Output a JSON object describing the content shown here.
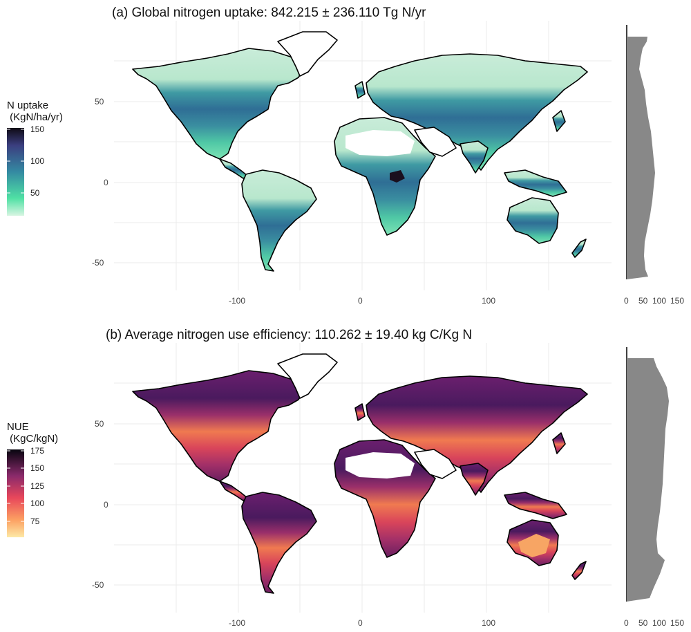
{
  "panels": [
    {
      "id": "a",
      "title": "(a) Global nitrogen uptake: 842.215 ± 236.110 Tg N/yr",
      "legend_title": "N uptake\n (KgN/ha/yr)",
      "legend_ticks": [
        "150",
        "100",
        "50"
      ],
      "palette": "mako",
      "colors": {
        "low": "#4fe0a4",
        "mid": "#3a8ea0",
        "high": "#3b2f6b",
        "top": "#1a0f1e",
        "tundra": "#c9ecd9",
        "sahara": "#ffffff"
      },
      "x_ticks": [
        "-100",
        "0",
        "100"
      ],
      "y_ticks": [
        "50",
        "0",
        "-50"
      ],
      "hist_ticks": [
        "0",
        "50",
        "100",
        "150"
      ]
    },
    {
      "id": "b",
      "title": "(b) Average nitrogen use efficiency: 110.262 ± 19.40 kg C/Kg N",
      "legend_title": "NUE\n (KgC/kgN)",
      "legend_ticks": [
        "175",
        "150",
        "125",
        "100",
        "75"
      ],
      "palette": "magma",
      "colors": {
        "low": "#fde38c",
        "mid": "#f06a4a",
        "high": "#8a2a6b",
        "top": "#1e0c2a",
        "tundra": "#6b1f6e",
        "sahara": "#ffffff"
      },
      "x_ticks": [
        "-100",
        "0",
        "100"
      ],
      "y_ticks": [
        "50",
        "0",
        "-50"
      ],
      "hist_ticks": [
        "0",
        "50",
        "100",
        "150"
      ]
    }
  ],
  "hist_color": "#888888",
  "grid_color": "#ebebeb"
}
